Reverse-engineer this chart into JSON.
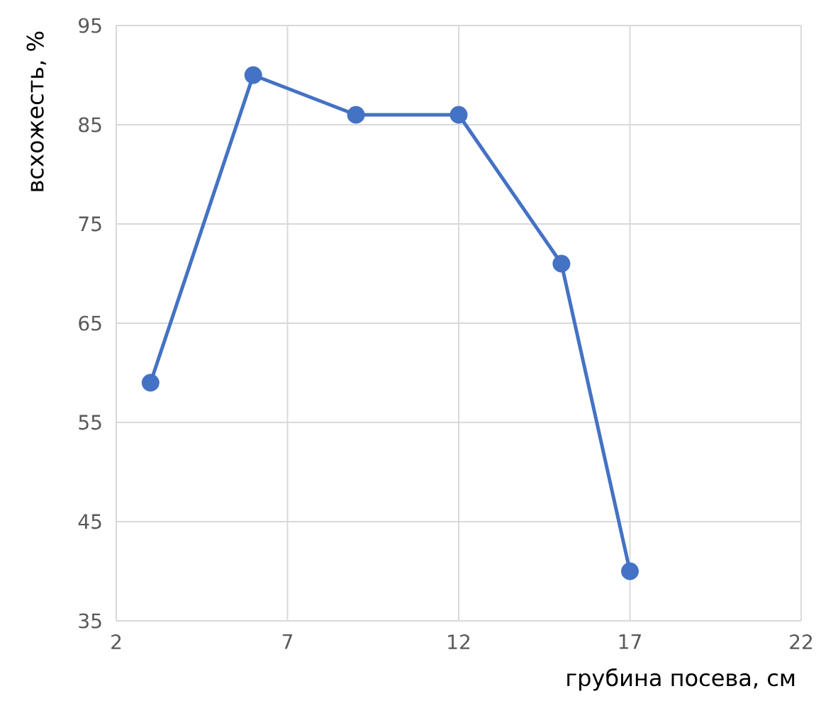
{
  "chart_data": {
    "type": "line",
    "xlabel": "грубина посева, см",
    "ylabel": "всхожесть, %",
    "x": [
      3,
      6,
      9,
      12,
      15,
      17
    ],
    "series": [
      {
        "color": "#4472c4",
        "values": [
          59,
          90,
          86,
          86,
          71,
          40
        ]
      }
    ],
    "xlim": [
      2,
      22
    ],
    "xticks": [
      2,
      7,
      12,
      17,
      22
    ],
    "ylim": [
      35,
      95
    ],
    "yticks": [
      35,
      45,
      55,
      65,
      75,
      85,
      95
    ],
    "grid": true,
    "marker": "circle",
    "line_style": "solid"
  }
}
